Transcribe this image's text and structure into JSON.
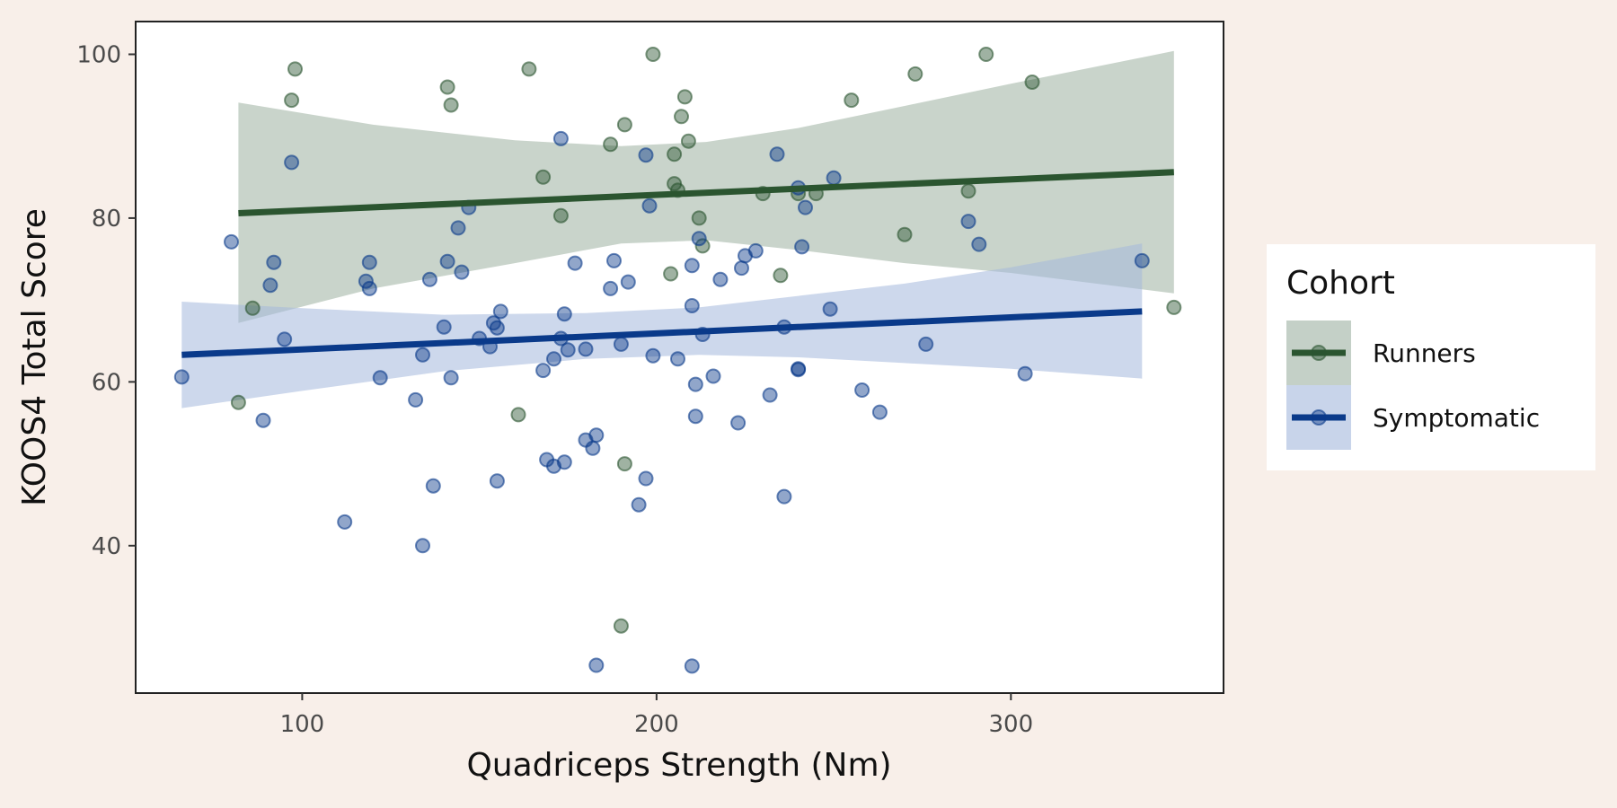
{
  "chart_data": {
    "type": "scatter",
    "title": "",
    "xlabel": "Quadriceps Strength (Nm)",
    "ylabel": "KOOS4 Total Score",
    "xlim": [
      53,
      360
    ],
    "ylim": [
      22,
      104
    ],
    "x_ticks": [
      100,
      200,
      300
    ],
    "y_ticks": [
      40,
      60,
      80,
      100
    ],
    "grid": false,
    "legend": {
      "title": "Cohort",
      "position": "right"
    },
    "series": [
      {
        "name": "Runners",
        "color": "#2b5530",
        "band_color": "#9db1a1",
        "points": [
          [
            97,
            94.4
          ],
          [
            98,
            98.2
          ],
          [
            82,
            57.5
          ],
          [
            86,
            69.0
          ],
          [
            141,
            96.0
          ],
          [
            142,
            93.8
          ],
          [
            164,
            98.2
          ],
          [
            168,
            85.0
          ],
          [
            173,
            80.3
          ],
          [
            161,
            56.0
          ],
          [
            187,
            89.0
          ],
          [
            190,
            30.2
          ],
          [
            191,
            50.0
          ],
          [
            191,
            91.4
          ],
          [
            199,
            100.0
          ],
          [
            204,
            73.2
          ],
          [
            205,
            87.8
          ],
          [
            205,
            84.2
          ],
          [
            206,
            83.4
          ],
          [
            207,
            92.4
          ],
          [
            208,
            94.8
          ],
          [
            209,
            89.4
          ],
          [
            212,
            80.0
          ],
          [
            213,
            76.6
          ],
          [
            230,
            83.0
          ],
          [
            235,
            73.0
          ],
          [
            240,
            83.0
          ],
          [
            245,
            83.0
          ],
          [
            255,
            94.4
          ],
          [
            270,
            78.0
          ],
          [
            273,
            97.6
          ],
          [
            288,
            83.3
          ],
          [
            293,
            100.0
          ],
          [
            306,
            96.6
          ],
          [
            346,
            69.1
          ]
        ],
        "fit_line": [
          [
            82,
            80.6
          ],
          [
            346,
            85.6
          ]
        ],
        "band_upper": [
          [
            82,
            94.1
          ],
          [
            120,
            91.4
          ],
          [
            160,
            89.5
          ],
          [
            190,
            88.8
          ],
          [
            214,
            89.3
          ],
          [
            240,
            91.0
          ],
          [
            270,
            93.7
          ],
          [
            300,
            96.4
          ],
          [
            346,
            100.4
          ]
        ],
        "band_lower": [
          [
            82,
            67.2
          ],
          [
            120,
            71.4
          ],
          [
            160,
            74.5
          ],
          [
            190,
            76.9
          ],
          [
            214,
            77.3
          ],
          [
            240,
            76.1
          ],
          [
            270,
            74.5
          ],
          [
            300,
            73.3
          ],
          [
            346,
            70.8
          ]
        ]
      },
      {
        "name": "Symptomatic",
        "color": "#0a3a8a",
        "band_color": "#a4b8dc",
        "points": [
          [
            66,
            60.6
          ],
          [
            80,
            77.1
          ],
          [
            89,
            55.3
          ],
          [
            91,
            71.8
          ],
          [
            92,
            74.6
          ],
          [
            95,
            65.2
          ],
          [
            97,
            86.8
          ],
          [
            112,
            42.9
          ],
          [
            118,
            72.3
          ],
          [
            119,
            74.6
          ],
          [
            119,
            71.4
          ],
          [
            122,
            60.5
          ],
          [
            132,
            57.8
          ],
          [
            134,
            40.0
          ],
          [
            134,
            63.3
          ],
          [
            136,
            72.5
          ],
          [
            137,
            47.3
          ],
          [
            140,
            66.7
          ],
          [
            141,
            74.7
          ],
          [
            142,
            60.5
          ],
          [
            144,
            78.8
          ],
          [
            145,
            73.4
          ],
          [
            147,
            81.3
          ],
          [
            150,
            65.3
          ],
          [
            153,
            64.3
          ],
          [
            154,
            67.2
          ],
          [
            155,
            47.9
          ],
          [
            155,
            66.6
          ],
          [
            156,
            68.6
          ],
          [
            168,
            61.4
          ],
          [
            169,
            50.5
          ],
          [
            171,
            62.8
          ],
          [
            171,
            49.7
          ],
          [
            173,
            89.7
          ],
          [
            173,
            65.3
          ],
          [
            174,
            50.2
          ],
          [
            174,
            68.3
          ],
          [
            175,
            63.9
          ],
          [
            177,
            74.5
          ],
          [
            180,
            64.0
          ],
          [
            180,
            52.9
          ],
          [
            182,
            51.9
          ],
          [
            183,
            53.5
          ],
          [
            183,
            25.4
          ],
          [
            187,
            71.4
          ],
          [
            188,
            74.8
          ],
          [
            190,
            64.6
          ],
          [
            192,
            72.2
          ],
          [
            195,
            45.0
          ],
          [
            197,
            87.7
          ],
          [
            197,
            48.2
          ],
          [
            198,
            81.5
          ],
          [
            199,
            63.2
          ],
          [
            206,
            62.8
          ],
          [
            210,
            25.3
          ],
          [
            210,
            74.2
          ],
          [
            210,
            69.3
          ],
          [
            211,
            55.8
          ],
          [
            211,
            59.7
          ],
          [
            212,
            77.5
          ],
          [
            213,
            65.8
          ],
          [
            216,
            60.7
          ],
          [
            218,
            72.5
          ],
          [
            223,
            55.0
          ],
          [
            224,
            73.9
          ],
          [
            225,
            75.4
          ],
          [
            228,
            76.0
          ],
          [
            232,
            58.4
          ],
          [
            234,
            87.8
          ],
          [
            236,
            46.0
          ],
          [
            236,
            66.7
          ],
          [
            240,
            61.6
          ],
          [
            240,
            61.5
          ],
          [
            240,
            83.7
          ],
          [
            241,
            76.5
          ],
          [
            242,
            81.3
          ],
          [
            249,
            68.9
          ],
          [
            250,
            84.9
          ],
          [
            258,
            59.0
          ],
          [
            263,
            56.3
          ],
          [
            276,
            64.6
          ],
          [
            288,
            79.6
          ],
          [
            291,
            76.8
          ],
          [
            304,
            61.0
          ],
          [
            337,
            74.8
          ]
        ],
        "fit_line": [
          [
            66,
            63.3
          ],
          [
            337,
            68.6
          ]
        ],
        "band_upper": [
          [
            66,
            69.8
          ],
          [
            100,
            69.0
          ],
          [
            140,
            68.2
          ],
          [
            180,
            68.4
          ],
          [
            212,
            69.1
          ],
          [
            240,
            70.5
          ],
          [
            270,
            72.0
          ],
          [
            300,
            74.0
          ],
          [
            337,
            76.9
          ]
        ],
        "band_lower": [
          [
            66,
            56.8
          ],
          [
            100,
            58.9
          ],
          [
            140,
            61.3
          ],
          [
            180,
            62.8
          ],
          [
            212,
            63.3
          ],
          [
            240,
            63.0
          ],
          [
            270,
            62.3
          ],
          [
            300,
            61.6
          ],
          [
            337,
            60.4
          ]
        ]
      }
    ]
  }
}
